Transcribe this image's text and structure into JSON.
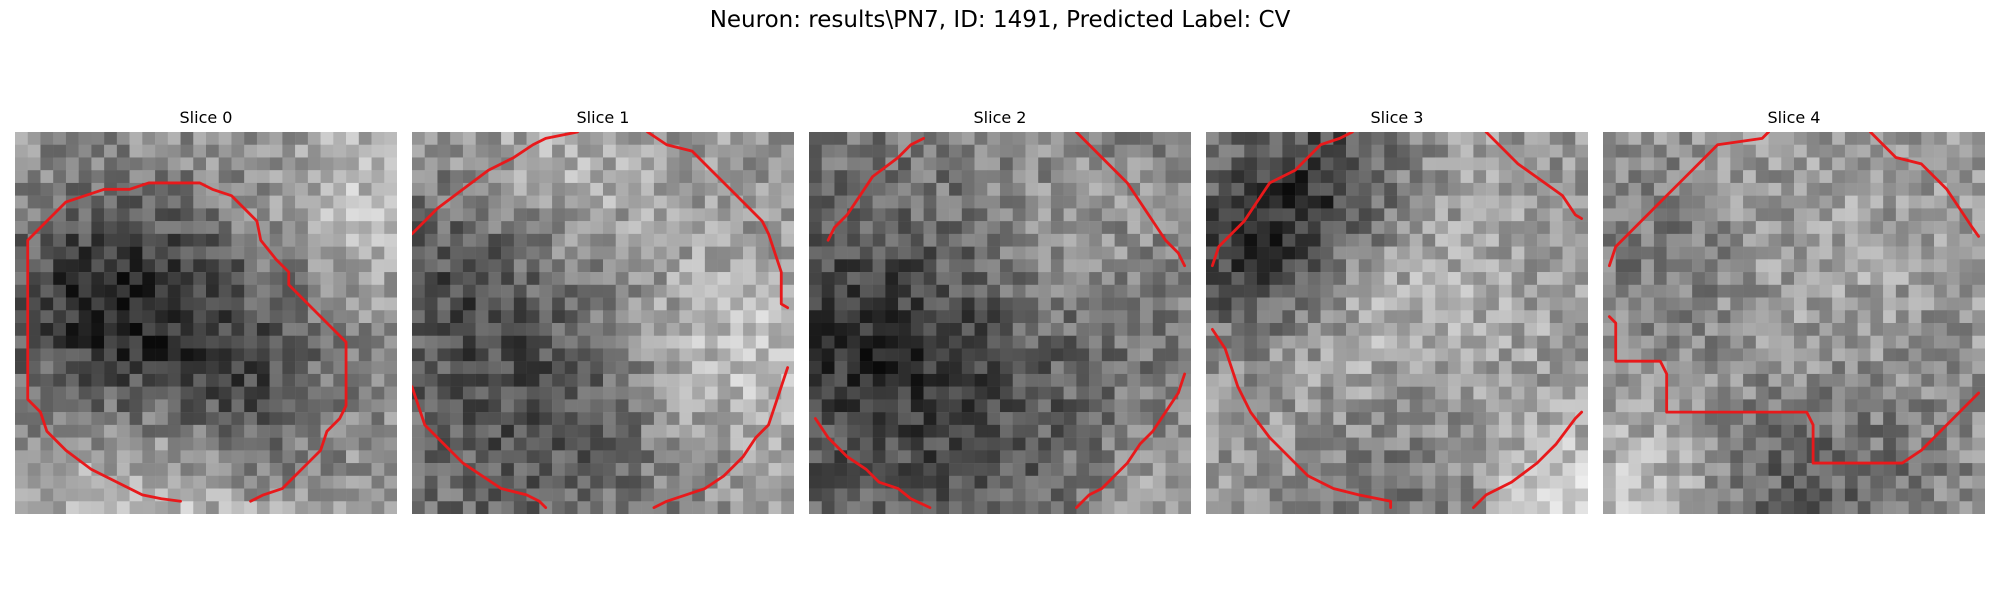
{
  "figure": {
    "title": "Neuron: results\\PN7, ID: 1491, Predicted Label: CV"
  },
  "slices": [
    {
      "label": "Slice 0"
    },
    {
      "label": "Slice 1"
    },
    {
      "label": "Slice 2"
    },
    {
      "label": "Slice 3"
    },
    {
      "label": "Slice 4"
    }
  ],
  "colors": {
    "contour": "#e8191b",
    "colormap": "grayscale"
  }
}
